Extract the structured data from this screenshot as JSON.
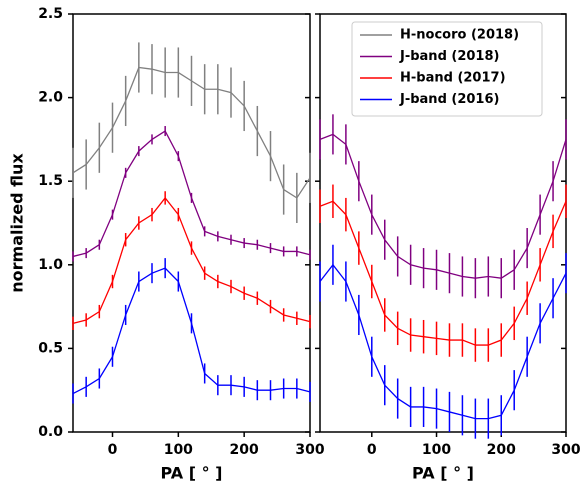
{
  "chart_data": [
    {
      "type": "line",
      "ylabel": "normalized flux",
      "xlabel": "PA [ ° ]",
      "xlim": [
        -60,
        300
      ],
      "xticks": [
        0,
        100,
        200,
        300
      ],
      "ylim": [
        0,
        2.5
      ],
      "yticks": [
        {
          "value": 0,
          "label": "0.0"
        },
        0.5,
        {
          "value": 1,
          "label": "1.0"
        },
        1.5,
        {
          "value": 2,
          "label": "2.0"
        },
        2.5
      ],
      "legend": true,
      "x": [
        -60,
        -40,
        -20,
        0,
        20,
        40,
        60,
        80,
        100,
        120,
        140,
        160,
        180,
        200,
        220,
        240,
        260,
        280,
        300
      ],
      "series": [
        {
          "name": "H-nocoro (2018)",
          "color": "#808080",
          "values": [
            1.55,
            1.6,
            1.7,
            1.82,
            1.98,
            2.18,
            2.17,
            2.15,
            2.15,
            2.1,
            2.05,
            2.05,
            2.03,
            1.95,
            1.8,
            1.65,
            1.45,
            1.4,
            1.52
          ],
          "errors": [
            0.15,
            0.15,
            0.15,
            0.15,
            0.15,
            0.15,
            0.15,
            0.15,
            0.15,
            0.15,
            0.15,
            0.15,
            0.15,
            0.15,
            0.15,
            0.15,
            0.15,
            0.15,
            0.15
          ]
        },
        {
          "name": "J-band (2018)",
          "color": "#800080",
          "values": [
            1.05,
            1.07,
            1.12,
            1.3,
            1.55,
            1.68,
            1.75,
            1.8,
            1.65,
            1.4,
            1.2,
            1.17,
            1.15,
            1.13,
            1.12,
            1.1,
            1.08,
            1.08,
            1.06
          ],
          "errors": [
            0.03,
            0.03,
            0.03,
            0.03,
            0.03,
            0.03,
            0.03,
            0.03,
            0.03,
            0.03,
            0.03,
            0.03,
            0.03,
            0.03,
            0.03,
            0.03,
            0.03,
            0.03,
            0.03
          ]
        },
        {
          "name": "H-band (2017)",
          "color": "#ff0000",
          "values": [
            0.65,
            0.67,
            0.72,
            0.9,
            1.15,
            1.25,
            1.3,
            1.4,
            1.3,
            1.1,
            0.95,
            0.9,
            0.87,
            0.83,
            0.8,
            0.75,
            0.7,
            0.68,
            0.66
          ],
          "errors": [
            0.04,
            0.04,
            0.04,
            0.04,
            0.04,
            0.04,
            0.04,
            0.04,
            0.04,
            0.04,
            0.04,
            0.04,
            0.04,
            0.04,
            0.04,
            0.04,
            0.04,
            0.04,
            0.04
          ]
        },
        {
          "name": "J-band (2016)",
          "color": "#0000ff",
          "values": [
            0.23,
            0.27,
            0.32,
            0.45,
            0.7,
            0.9,
            0.95,
            0.98,
            0.9,
            0.65,
            0.35,
            0.28,
            0.28,
            0.27,
            0.25,
            0.25,
            0.26,
            0.26,
            0.24
          ],
          "errors": [
            0.06,
            0.06,
            0.06,
            0.06,
            0.06,
            0.06,
            0.06,
            0.06,
            0.06,
            0.06,
            0.06,
            0.06,
            0.06,
            0.06,
            0.06,
            0.06,
            0.06,
            0.06,
            0.06
          ]
        }
      ]
    },
    {
      "type": "line",
      "xlabel": "PA [ ° ]",
      "xlim": [
        -80,
        300
      ],
      "xticks": [
        0,
        100,
        200,
        300
      ],
      "ylim": [
        0,
        2.5
      ],
      "yticks": [
        0,
        0.5,
        1,
        1.5,
        2,
        2.5
      ],
      "x": [
        -80,
        -60,
        -40,
        -20,
        0,
        20,
        40,
        60,
        80,
        100,
        120,
        140,
        160,
        180,
        200,
        220,
        240,
        260,
        280,
        300
      ],
      "series": [
        {
          "color": "#800080",
          "values": [
            1.75,
            1.78,
            1.72,
            1.5,
            1.3,
            1.15,
            1.05,
            1.0,
            0.98,
            0.97,
            0.95,
            0.93,
            0.92,
            0.93,
            0.92,
            0.97,
            1.1,
            1.3,
            1.5,
            1.75
          ],
          "errors": [
            0.12,
            0.12,
            0.12,
            0.12,
            0.12,
            0.12,
            0.12,
            0.12,
            0.12,
            0.12,
            0.12,
            0.12,
            0.12,
            0.12,
            0.12,
            0.12,
            0.12,
            0.12,
            0.12,
            0.12
          ]
        },
        {
          "color": "#ff0000",
          "values": [
            1.35,
            1.38,
            1.3,
            1.1,
            0.9,
            0.7,
            0.62,
            0.58,
            0.57,
            0.56,
            0.55,
            0.55,
            0.52,
            0.52,
            0.55,
            0.65,
            0.8,
            1.0,
            1.2,
            1.38
          ],
          "errors": [
            0.1,
            0.1,
            0.1,
            0.1,
            0.1,
            0.1,
            0.1,
            0.1,
            0.1,
            0.1,
            0.1,
            0.1,
            0.1,
            0.1,
            0.1,
            0.1,
            0.1,
            0.1,
            0.1,
            0.1
          ]
        },
        {
          "color": "#0000ff",
          "values": [
            0.9,
            1.0,
            0.9,
            0.7,
            0.45,
            0.28,
            0.2,
            0.15,
            0.15,
            0.14,
            0.12,
            0.1,
            0.08,
            0.08,
            0.1,
            0.25,
            0.45,
            0.65,
            0.8,
            0.95
          ],
          "errors": [
            0.12,
            0.12,
            0.12,
            0.12,
            0.12,
            0.12,
            0.12,
            0.12,
            0.12,
            0.12,
            0.12,
            0.12,
            0.12,
            0.12,
            0.12,
            0.12,
            0.12,
            0.12,
            0.12,
            0.12
          ]
        }
      ]
    }
  ]
}
